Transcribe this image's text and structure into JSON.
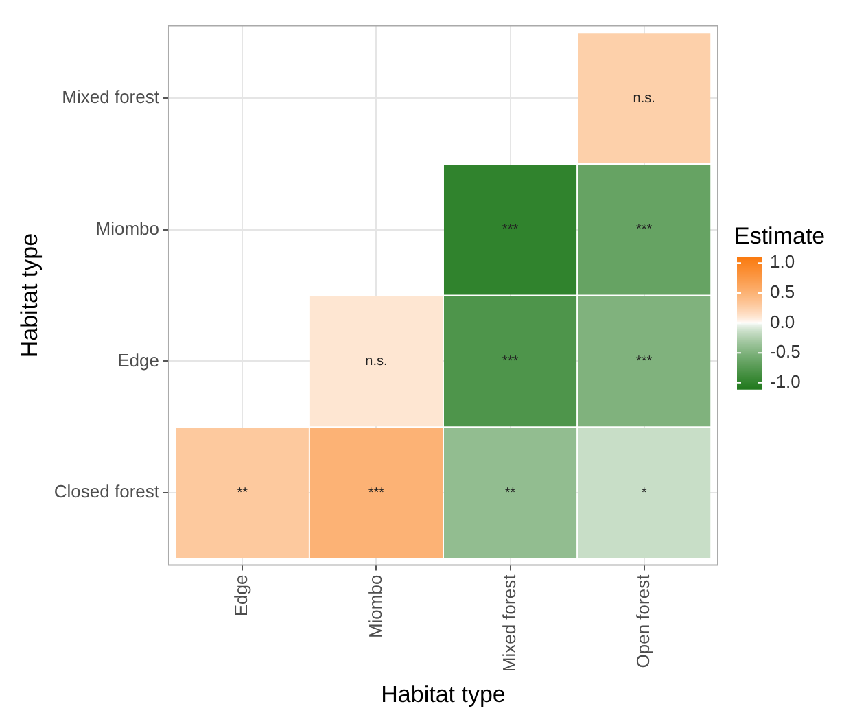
{
  "chart_data": {
    "type": "heatmap",
    "xlabel": "Habitat type",
    "ylabel": "Habitat type",
    "legend_title": "Estimate",
    "categories": [
      "Edge",
      "Miombo",
      "Mixed forest",
      "Open forest"
    ],
    "y_categories": [
      "Mixed forest",
      "Miombo",
      "Edge",
      "Closed forest"
    ],
    "cells": [
      [
        null,
        null,
        null,
        0.25
      ],
      [
        null,
        null,
        -1.0,
        -0.65
      ],
      [
        null,
        0.1,
        -0.8,
        -0.5
      ],
      [
        0.3,
        0.5,
        -0.4,
        -0.15
      ]
    ],
    "cell_labels": [
      [
        null,
        null,
        null,
        "n.s."
      ],
      [
        null,
        null,
        "***",
        "***"
      ],
      [
        null,
        "n.s.",
        "***",
        "***"
      ],
      [
        "**",
        "***",
        "**",
        "*"
      ]
    ],
    "clim": [
      -1.1,
      1.1
    ],
    "cticks": [
      {
        "value": 1,
        "label": "1.0"
      },
      {
        "value": 0.5,
        "label": "0.5"
      },
      {
        "value": 0,
        "label": "0.0"
      },
      {
        "value": -0.5,
        "label": "-0.5"
      },
      {
        "value": -1,
        "label": "-1.0"
      }
    ],
    "grid": true
  }
}
